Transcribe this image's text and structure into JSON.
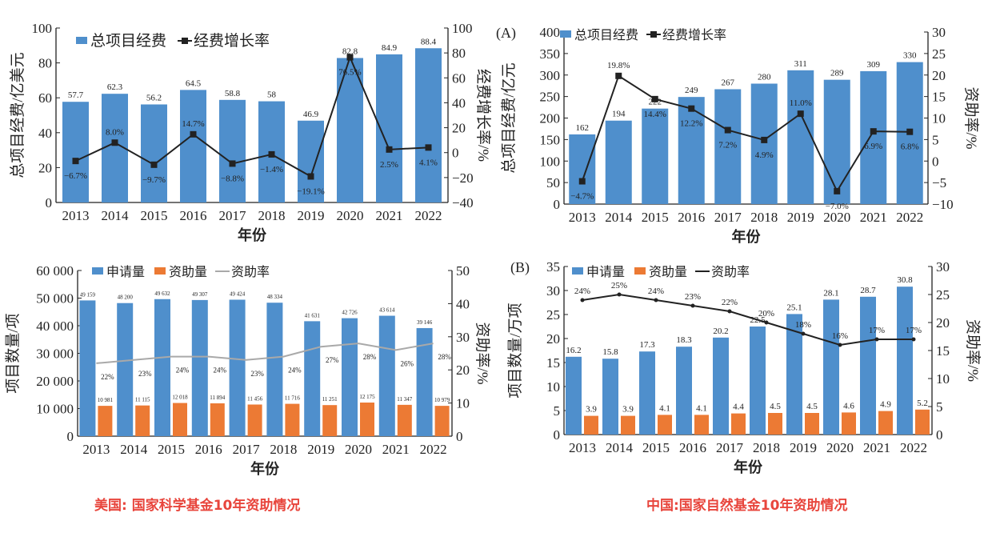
{
  "captions": {
    "left": "美国: 国家科学基金10年资助情况",
    "right": "中国:国家自然基金10年资助情况"
  },
  "colors": {
    "bar_blue": "#4f8fcc",
    "bar_orange": "#ec7a34",
    "line_black": "#222222",
    "line_gray": "#a9a9a9"
  },
  "chart_data": [
    {
      "type": "bar+line",
      "panel_label": "",
      "categories": [
        "2013",
        "2014",
        "2015",
        "2016",
        "2017",
        "2018",
        "2019",
        "2020",
        "2021",
        "2022"
      ],
      "xlabel": "年份",
      "ylabel": "总项目经费/亿美元",
      "y2label": "经费增长率/%",
      "ylim": [
        0,
        100
      ],
      "y2lim": [
        -40,
        100
      ],
      "yticks": [
        "0",
        "20",
        "40",
        "60",
        "80",
        "100"
      ],
      "y2ticks": [
        "−40",
        "−20",
        "0",
        "20",
        "40",
        "60",
        "80",
        "100"
      ],
      "legend": [
        "总项目经费",
        "经费增长率"
      ],
      "series": [
        {
          "name": "总项目经费",
          "kind": "bar",
          "axis": "left",
          "values": [
            57.7,
            62.3,
            56.2,
            64.5,
            58.8,
            58,
            46.9,
            82.8,
            84.9,
            88.4
          ],
          "labels": [
            "57.7",
            "62.3",
            "56.2",
            "64.5",
            "58.8",
            "58",
            "46.9",
            "82.8",
            "84.9",
            "88.4"
          ]
        },
        {
          "name": "经费增长率",
          "kind": "line",
          "axis": "right",
          "values": [
            -6.7,
            8.0,
            -9.7,
            14.7,
            -8.8,
            -1.4,
            -19.1,
            76.5,
            2.5,
            4.1
          ],
          "labels": [
            "−6.7%",
            "8.0%",
            "−9.7%",
            "14.7%",
            "−8.8%",
            "−1.4%",
            "−19.1%",
            "76.5%",
            "2.5%",
            "4.1%"
          ]
        }
      ]
    },
    {
      "type": "bar+line",
      "panel_label": "(A)",
      "categories": [
        "2013",
        "2014",
        "2015",
        "2016",
        "2017",
        "2018",
        "2019",
        "2020",
        "2021",
        "2022"
      ],
      "xlabel": "年份",
      "ylabel": "总项目经费/亿元",
      "y2label": "资助率/%",
      "ylim": [
        0,
        400
      ],
      "y2lim": [
        -10,
        30
      ],
      "yticks": [
        "0",
        "50",
        "100",
        "150",
        "200",
        "250",
        "300",
        "350",
        "400"
      ],
      "y2ticks": [
        "−10",
        "−5",
        "0",
        "5",
        "10",
        "15",
        "20",
        "25",
        "30"
      ],
      "legend": [
        "总项目经费",
        "经费增长率"
      ],
      "series": [
        {
          "name": "总项目经费",
          "kind": "bar",
          "axis": "left",
          "values": [
            162,
            194,
            222,
            249,
            267,
            280,
            311,
            289,
            309,
            330
          ],
          "labels": [
            "162",
            "194",
            "222",
            "249",
            "267",
            "280",
            "311",
            "289",
            "309",
            "330"
          ]
        },
        {
          "name": "经费增长率",
          "kind": "line",
          "axis": "right",
          "values": [
            -4.7,
            19.8,
            14.4,
            12.2,
            7.2,
            4.9,
            11.0,
            -7.0,
            6.9,
            6.8
          ],
          "labels": [
            "−4.7%",
            "19.8%",
            "14.4%",
            "12.2%",
            "7.2%",
            "4.9%",
            "11.0%",
            "−7.0%",
            "6.9%",
            "6.8%"
          ]
        }
      ]
    },
    {
      "type": "bar+line",
      "panel_label": "",
      "categories": [
        "2013",
        "2014",
        "2015",
        "2016",
        "2017",
        "2018",
        "2019",
        "2020",
        "2021",
        "2022"
      ],
      "xlabel": "年份",
      "ylabel": "项目数量/项",
      "y2label": "资助率/%",
      "ylim": [
        0,
        60000
      ],
      "y2lim": [
        0,
        50
      ],
      "yticks": [
        "0",
        "10 000",
        "20 000",
        "30 000",
        "40 000",
        "50 000",
        "60 000"
      ],
      "y2ticks": [
        "0",
        "10",
        "20",
        "30",
        "40",
        "50"
      ],
      "legend": [
        "申请量",
        "资助量",
        "资助率"
      ],
      "series": [
        {
          "name": "申请量",
          "kind": "bar",
          "axis": "left",
          "values": [
            49159,
            48200,
            49632,
            49307,
            49424,
            48334,
            41631,
            42726,
            43614,
            39146
          ],
          "labels": [
            "49 159",
            "48 200",
            "49 632",
            "49 307",
            "49 424",
            "48 334",
            "41 631",
            "42 726",
            "43 614",
            "39 146"
          ]
        },
        {
          "name": "资助量",
          "kind": "bar",
          "axis": "left",
          "values": [
            10981,
            11115,
            12018,
            11894,
            11456,
            11716,
            11251,
            12175,
            11347,
            10979
          ],
          "labels": [
            "10 981",
            "11 115",
            "12 018",
            "11 894",
            "11 456",
            "11 716",
            "11 251",
            "12 175",
            "11 347",
            "10 979"
          ]
        },
        {
          "name": "资助率",
          "kind": "line",
          "axis": "right",
          "values": [
            22,
            23,
            24,
            24,
            23,
            24,
            27,
            28,
            26,
            28
          ],
          "labels": [
            "22%",
            "23%",
            "24%",
            "24%",
            "23%",
            "24%",
            "27%",
            "28%",
            "26%",
            "28%"
          ]
        }
      ]
    },
    {
      "type": "bar+line",
      "panel_label": "(B)",
      "categories": [
        "2013",
        "2014",
        "2015",
        "2016",
        "2017",
        "2018",
        "2019",
        "2020",
        "2021",
        "2022"
      ],
      "xlabel": "年份",
      "ylabel": "项目数量/万项",
      "y2label": "资助率/%",
      "ylim": [
        0,
        35
      ],
      "y2lim": [
        0,
        30
      ],
      "yticks": [
        "0",
        "5",
        "10",
        "15",
        "20",
        "25",
        "30",
        "35"
      ],
      "y2ticks": [
        "0",
        "5",
        "10",
        "15",
        "20",
        "25",
        "30"
      ],
      "legend": [
        "申请量",
        "资助量",
        "资助率"
      ],
      "series": [
        {
          "name": "申请量",
          "kind": "bar",
          "axis": "left",
          "values": [
            16.2,
            15.8,
            17.3,
            18.3,
            20.2,
            22.5,
            25.1,
            28.1,
            28.7,
            30.8
          ],
          "labels": [
            "16.2",
            "15.8",
            "17.3",
            "18.3",
            "20.2",
            "22.5",
            "25.1",
            "28.1",
            "28.7",
            "30.8"
          ]
        },
        {
          "name": "资助量",
          "kind": "bar",
          "axis": "left",
          "values": [
            3.9,
            3.9,
            4.1,
            4.1,
            4.4,
            4.5,
            4.5,
            4.6,
            4.9,
            5.2
          ],
          "labels": [
            "3.9",
            "3.9",
            "4.1",
            "4.1",
            "4.4",
            "4.5",
            "4.5",
            "4.6",
            "4.9",
            "5.2"
          ]
        },
        {
          "name": "资助率",
          "kind": "line",
          "axis": "right",
          "values": [
            24,
            25,
            24,
            23,
            22,
            20,
            18,
            16,
            17,
            17
          ],
          "labels": [
            "24%",
            "25%",
            "24%",
            "23%",
            "22%",
            "20%",
            "18%",
            "16%",
            "17%",
            "17%"
          ]
        }
      ]
    }
  ]
}
